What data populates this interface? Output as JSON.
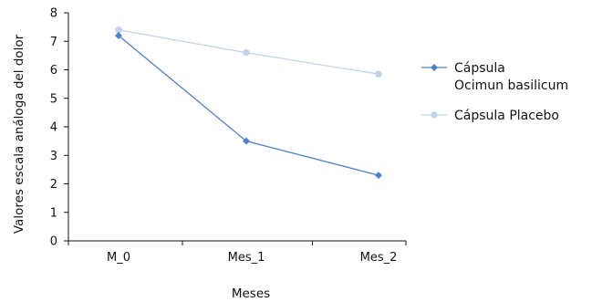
{
  "chart_data": {
    "type": "line",
    "title": "",
    "xlabel": "Meses",
    "ylabel": "Valores escala análoga del dolor",
    "categories": [
      "M_0",
      "Mes_1",
      "Mes_2"
    ],
    "ylim": [
      0,
      8
    ],
    "yticks": [
      0,
      1,
      2,
      3,
      4,
      5,
      6,
      7,
      8
    ],
    "grid": false,
    "legend_position": "right",
    "series": [
      {
        "name": "Cápsula Ocimun basilicum",
        "name_lines": [
          "Cápsula",
          "Ocimun basilicum"
        ],
        "values": [
          7.2,
          3.5,
          2.3
        ],
        "color": "#4f81c4",
        "marker": "diamond"
      },
      {
        "name": "Cápsula Placebo",
        "name_lines": [
          "Cápsula Placebo"
        ],
        "values": [
          7.4,
          6.6,
          5.85
        ],
        "color": "#c2d4ea",
        "marker": "circle"
      }
    ]
  }
}
